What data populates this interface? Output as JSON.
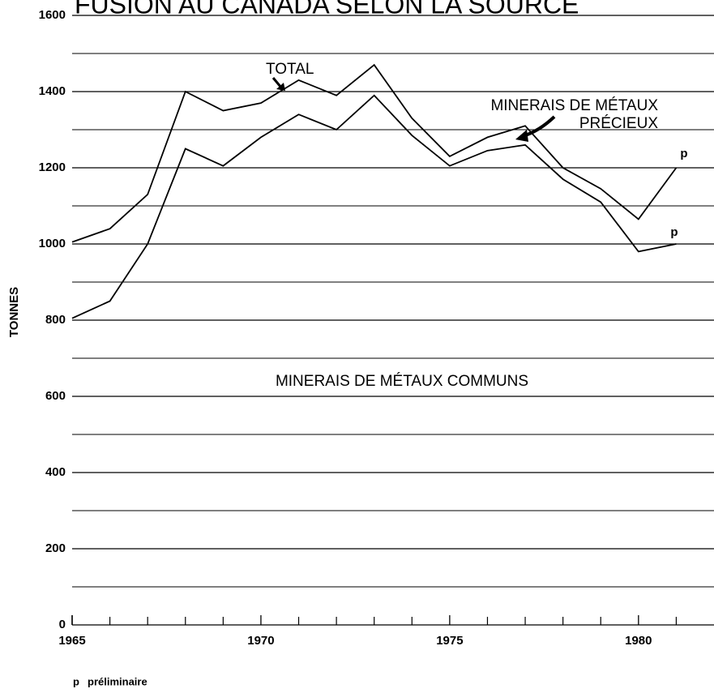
{
  "chart_data": {
    "type": "line",
    "title": "FUSION AU CANADA SELON LA SOURCE",
    "y_label": "TONNES",
    "x": [
      1965,
      1966,
      1967,
      1968,
      1969,
      1970,
      1971,
      1972,
      1973,
      1974,
      1975,
      1976,
      1977,
      1978,
      1979,
      1980,
      1981
    ],
    "series": [
      {
        "name": "TOTAL",
        "color": "#000000",
        "values": [
          1005,
          1040,
          1130,
          1400,
          1350,
          1370,
          1430,
          1390,
          1470,
          1330,
          1230,
          1280,
          1310,
          1200,
          1145,
          1065,
          1200
        ]
      },
      {
        "name": "MINERAIS DE MÉTAUX COMMUNS",
        "color": "#000000",
        "values": [
          805,
          850,
          1000,
          1250,
          1205,
          1280,
          1340,
          1300,
          1390,
          1285,
          1205,
          1245,
          1260,
          1170,
          1110,
          980,
          1000
        ]
      }
    ],
    "annotations": [
      "MINERAIS DE MÉTAUX",
      "PRÉCIEUX"
    ],
    "footnote": {
      "symbol": "p",
      "text": "préliminaire"
    },
    "xlim": [
      1965,
      1982
    ],
    "xticks": [
      1965,
      1970,
      1975,
      1980
    ],
    "minor_xticks": [
      1966,
      1967,
      1968,
      1969,
      1971,
      1972,
      1973,
      1974,
      1976,
      1977,
      1978,
      1979,
      1981
    ],
    "ylim": [
      0,
      1600
    ],
    "yticks": [
      0,
      200,
      400,
      600,
      800,
      1000,
      1200,
      1400,
      1600
    ],
    "minor_yticks": [
      100,
      300,
      500,
      700,
      900,
      1100,
      1300,
      1500
    ],
    "grid": true
  }
}
